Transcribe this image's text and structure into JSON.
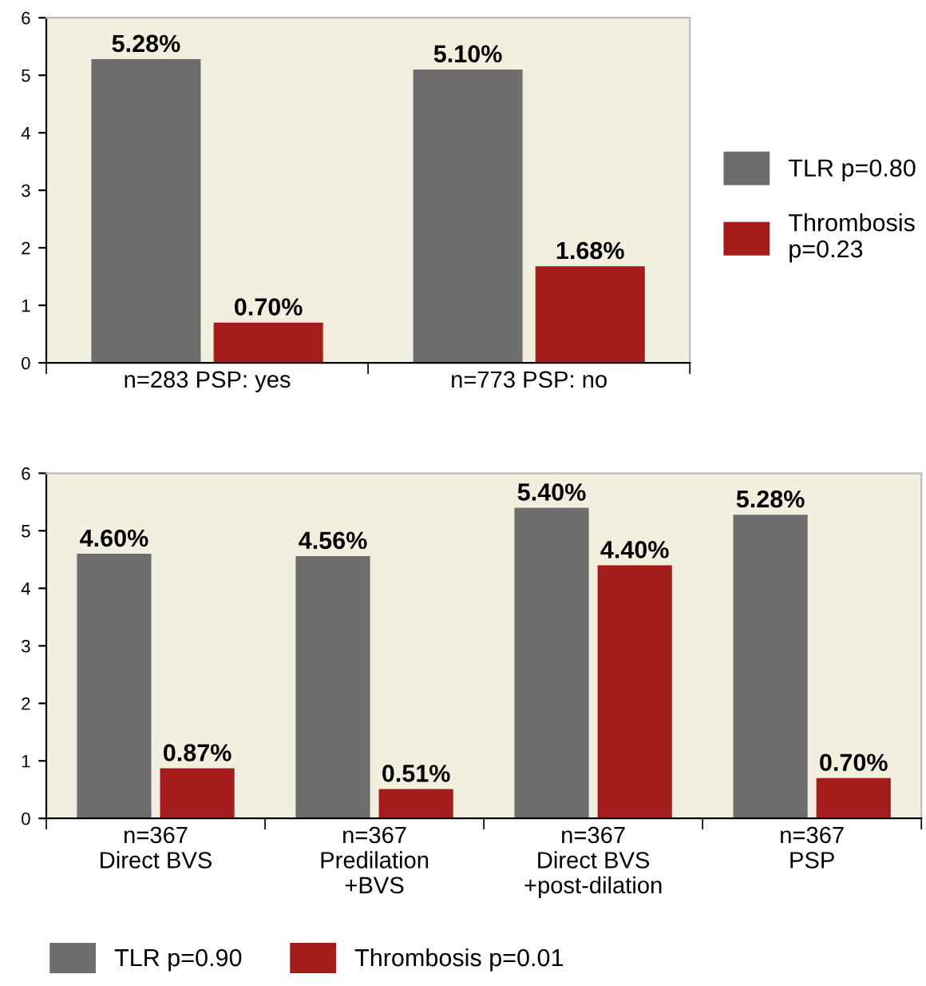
{
  "chart_data": [
    {
      "type": "bar",
      "categories": [
        "n=283 PSP: yes",
        "n=773 PSP: no"
      ],
      "ylim": [
        0,
        6
      ],
      "yticks": [
        0,
        1,
        2,
        3,
        4,
        5,
        6
      ],
      "legend": "right",
      "series": [
        {
          "name": "TLR p=0.80",
          "color": "#6d6d6d",
          "values": [
            5.28,
            5.1
          ],
          "value_labels": [
            "5.28%",
            "5.10%"
          ]
        },
        {
          "name": "Thrombosis p=0.23",
          "color": "#a51c1c",
          "values": [
            0.7,
            1.68
          ],
          "value_labels": [
            "0.70%",
            "1.68%"
          ]
        }
      ]
    },
    {
      "type": "bar",
      "categories": [
        "n=367\nDirect BVS",
        "n=367\nPredilation\n+BVS",
        "n=367\nDirect BVS\n+post-dilation",
        "n=367\nPSP"
      ],
      "ylim": [
        0,
        6
      ],
      "yticks": [
        0,
        1,
        2,
        3,
        4,
        5,
        6
      ],
      "legend": "bottom",
      "series": [
        {
          "name": "TLR p=0.90",
          "color": "#6d6d6d",
          "values": [
            4.6,
            4.56,
            5.4,
            5.28
          ],
          "value_labels": [
            "4.60%",
            "4.56%",
            "5.40%",
            "5.28%"
          ]
        },
        {
          "name": "Thrombosis p=0.01",
          "color": "#a51c1c",
          "values": [
            0.87,
            0.51,
            4.4,
            0.7
          ],
          "value_labels": [
            "0.87%",
            "0.51%",
            "4.40%",
            "0.70%"
          ]
        }
      ]
    }
  ]
}
